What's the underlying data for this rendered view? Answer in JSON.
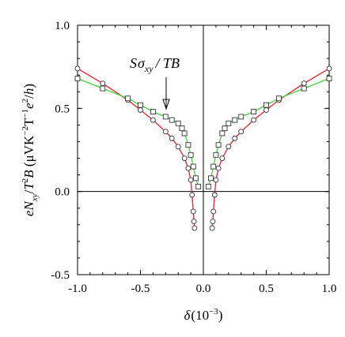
{
  "chart_data": {
    "type": "line",
    "xlabel": "δ(10⁻³)",
    "ylabel": "eN_xy/T²B (μVK⁻²T⁻¹e²/h)",
    "xlim": [
      -1.0,
      1.0
    ],
    "ylim": [
      -0.5,
      1.0
    ],
    "x_ticks": [
      -1.0,
      -0.5,
      0.0,
      0.5,
      1.0
    ],
    "x_tick_labels": [
      "-1.0",
      "-0.5",
      "0.0",
      "0.5",
      "1.0"
    ],
    "y_ticks": [
      -0.5,
      0.0,
      0.5,
      1.0
    ],
    "y_tick_labels": [
      "-0.5",
      "0.0",
      "0.5",
      "1.0"
    ],
    "annotation": "Sσ_xy / TB",
    "series": [
      {
        "marker": "circle",
        "color": "#e8202a",
        "points": [
          [
            -1.0,
            0.74
          ],
          [
            -0.8,
            0.65
          ],
          [
            -0.6,
            0.55
          ],
          [
            -0.5,
            0.49
          ],
          [
            -0.4,
            0.43
          ],
          [
            -0.3,
            0.36
          ],
          [
            -0.25,
            0.32
          ],
          [
            -0.2,
            0.27
          ],
          [
            -0.15,
            0.2
          ],
          [
            -0.12,
            0.14
          ],
          [
            -0.1,
            0.07
          ],
          [
            -0.09,
            -0.02
          ],
          [
            -0.08,
            -0.12
          ],
          [
            -0.075,
            -0.18
          ],
          [
            -0.07,
            -0.22
          ],
          [
            0.07,
            -0.22
          ],
          [
            0.075,
            -0.18
          ],
          [
            0.08,
            -0.12
          ],
          [
            0.09,
            -0.02
          ],
          [
            0.1,
            0.07
          ],
          [
            0.12,
            0.14
          ],
          [
            0.15,
            0.2
          ],
          [
            0.2,
            0.27
          ],
          [
            0.25,
            0.32
          ],
          [
            0.3,
            0.36
          ],
          [
            0.4,
            0.43
          ],
          [
            0.5,
            0.49
          ],
          [
            0.6,
            0.55
          ],
          [
            0.8,
            0.65
          ],
          [
            1.0,
            0.74
          ]
        ]
      },
      {
        "marker": "square",
        "color": "#3cd63c",
        "points": [
          [
            -1.0,
            0.68
          ],
          [
            -0.8,
            0.62
          ],
          [
            -0.6,
            0.56
          ],
          [
            -0.5,
            0.52
          ],
          [
            -0.4,
            0.48
          ],
          [
            -0.3,
            0.45
          ],
          [
            -0.25,
            0.43
          ],
          [
            -0.2,
            0.41
          ],
          [
            -0.17,
            0.38
          ],
          [
            -0.15,
            0.35
          ],
          [
            -0.12,
            0.28
          ],
          [
            -0.1,
            0.22
          ],
          [
            -0.08,
            0.15
          ],
          [
            -0.06,
            0.08
          ],
          [
            -0.04,
            0.03
          ],
          [
            0.04,
            0.03
          ],
          [
            0.06,
            0.08
          ],
          [
            0.08,
            0.15
          ],
          [
            0.1,
            0.22
          ],
          [
            0.12,
            0.28
          ],
          [
            0.15,
            0.35
          ],
          [
            0.17,
            0.38
          ],
          [
            0.2,
            0.41
          ],
          [
            0.25,
            0.43
          ],
          [
            0.3,
            0.45
          ],
          [
            0.4,
            0.48
          ],
          [
            0.5,
            0.52
          ],
          [
            0.6,
            0.56
          ],
          [
            0.8,
            0.62
          ],
          [
            1.0,
            0.68
          ]
        ]
      }
    ]
  }
}
